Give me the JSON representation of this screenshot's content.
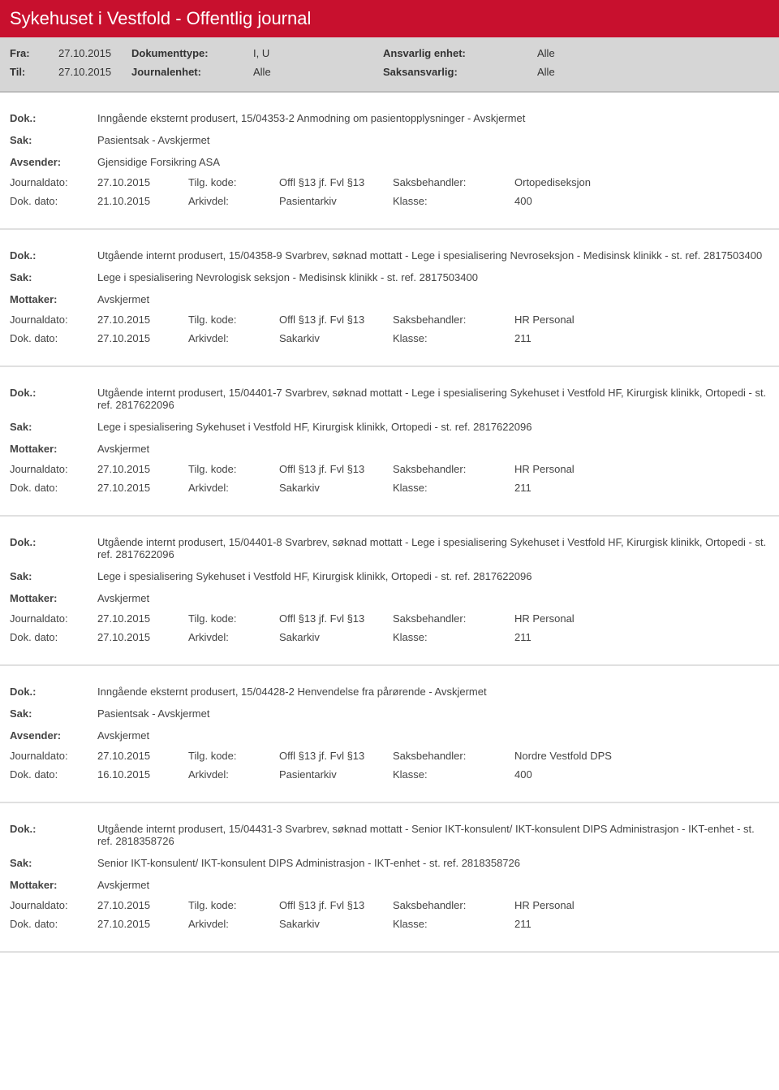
{
  "header": {
    "title": "Sykehuset i Vestfold - Offentlig journal",
    "fra_label": "Fra:",
    "til_label": "Til:",
    "fra_date": "27.10.2015",
    "til_date": "27.10.2015",
    "doktype_label": "Dokumenttype:",
    "doktype_value": "I, U",
    "journalenhet_label": "Journalenhet:",
    "journalenhet_value": "Alle",
    "ansvarlig_label": "Ansvarlig enhet:",
    "ansvarlig_value": "Alle",
    "saksansvarlig_label": "Saksansvarlig:",
    "saksansvarlig_value": "Alle"
  },
  "labels": {
    "dok": "Dok.:",
    "sak": "Sak:",
    "avsender": "Avsender:",
    "mottaker": "Mottaker:",
    "journaldato": "Journaldato:",
    "dokdato": "Dok. dato:",
    "tilgkode": "Tilg. kode:",
    "arkivdel": "Arkivdel:",
    "saksbehandler": "Saksbehandler:",
    "klasse": "Klasse:"
  },
  "entries": [
    {
      "dok": "Inngående eksternt produsert, 15/04353-2 Anmodning om pasientopplysninger - Avskjermet",
      "sak": "Pasientsak - Avskjermet",
      "party_label": "Avsender:",
      "party_value": "Gjensidige Forsikring ASA",
      "journaldato": "27.10.2015",
      "tilgkode": "Offl §13 jf. Fvl §13",
      "saksbehandler": "Ortopediseksjon",
      "dokdato": "21.10.2015",
      "arkivdel": "Pasientarkiv",
      "klasse": "400"
    },
    {
      "dok": "Utgående internt produsert, 15/04358-9 Svarbrev, søknad mottatt - Lege i spesialisering Nevroseksjon - Medisinsk klinikk - st. ref. 2817503400",
      "sak": "Lege i spesialisering Nevrologisk seksjon - Medisinsk klinikk - st. ref. 2817503400",
      "party_label": "Mottaker:",
      "party_value": "Avskjermet",
      "journaldato": "27.10.2015",
      "tilgkode": "Offl §13 jf. Fvl §13",
      "saksbehandler": "HR Personal",
      "dokdato": "27.10.2015",
      "arkivdel": "Sakarkiv",
      "klasse": "211"
    },
    {
      "dok": "Utgående internt produsert, 15/04401-7 Svarbrev, søknad mottatt - Lege i spesialisering Sykehuset i Vestfold HF, Kirurgisk klinikk, Ortopedi - st. ref. 2817622096",
      "sak": "Lege i spesialisering Sykehuset i Vestfold HF, Kirurgisk klinikk, Ortopedi - st. ref. 2817622096",
      "party_label": "Mottaker:",
      "party_value": "Avskjermet",
      "journaldato": "27.10.2015",
      "tilgkode": "Offl §13 jf. Fvl §13",
      "saksbehandler": "HR Personal",
      "dokdato": "27.10.2015",
      "arkivdel": "Sakarkiv",
      "klasse": "211"
    },
    {
      "dok": "Utgående internt produsert, 15/04401-8 Svarbrev, søknad mottatt - Lege i spesialisering Sykehuset i Vestfold HF, Kirurgisk klinikk, Ortopedi - st. ref. 2817622096",
      "sak": "Lege i spesialisering Sykehuset i Vestfold HF, Kirurgisk klinikk, Ortopedi - st. ref. 2817622096",
      "party_label": "Mottaker:",
      "party_value": "Avskjermet",
      "journaldato": "27.10.2015",
      "tilgkode": "Offl §13 jf. Fvl §13",
      "saksbehandler": "HR Personal",
      "dokdato": "27.10.2015",
      "arkivdel": "Sakarkiv",
      "klasse": "211"
    },
    {
      "dok": "Inngående eksternt produsert, 15/04428-2 Henvendelse fra pårørende - Avskjermet",
      "sak": "Pasientsak - Avskjermet",
      "party_label": "Avsender:",
      "party_value": "Avskjermet",
      "journaldato": "27.10.2015",
      "tilgkode": "Offl §13 jf. Fvl §13",
      "saksbehandler": "Nordre Vestfold DPS",
      "dokdato": "16.10.2015",
      "arkivdel": "Pasientarkiv",
      "klasse": "400"
    },
    {
      "dok": "Utgående internt produsert, 15/04431-3 Svarbrev, søknad mottatt - Senior IKT-konsulent/ IKT-konsulent DIPS Administrasjon - IKT-enhet - st. ref. 2818358726",
      "sak": "Senior IKT-konsulent/ IKT-konsulent DIPS Administrasjon - IKT-enhet - st. ref. 2818358726",
      "party_label": "Mottaker:",
      "party_value": "Avskjermet",
      "journaldato": "27.10.2015",
      "tilgkode": "Offl §13 jf. Fvl §13",
      "saksbehandler": "HR Personal",
      "dokdato": "27.10.2015",
      "arkivdel": "Sakarkiv",
      "klasse": "211"
    }
  ]
}
